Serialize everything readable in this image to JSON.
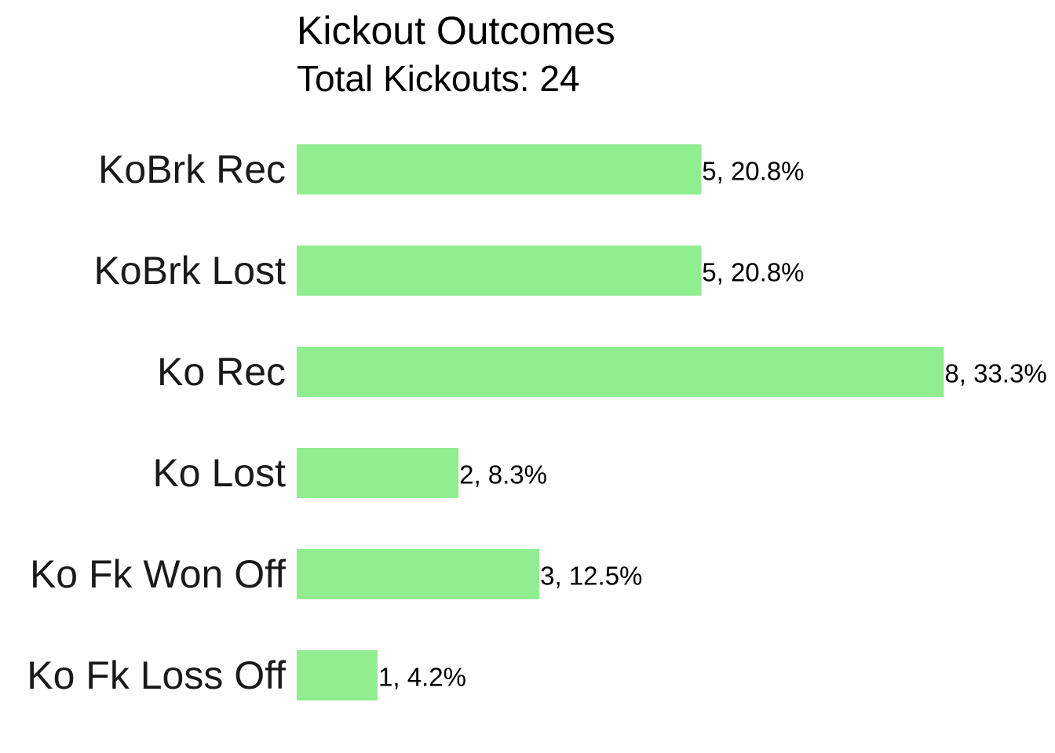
{
  "chart_data": {
    "type": "bar",
    "orientation": "horizontal",
    "title": "Kickout Outcomes",
    "subtitle": "Total Kickouts: 24",
    "xlabel": "",
    "ylabel": "",
    "grid": false,
    "legend": "none",
    "bar_color": "#90EE90",
    "xlim": [
      0,
      8.85
    ],
    "categories": [
      "KoBrk Rec",
      "KoBrk Lost",
      "Ko Rec",
      "Ko Lost",
      "Ko Fk Won Off",
      "Ko Fk Loss Off"
    ],
    "values": [
      5,
      5,
      8,
      2,
      3,
      1
    ],
    "data_labels": [
      "5, 20.8%",
      "5, 20.8%",
      "8, 33.3%",
      "2, 8.3%",
      "3, 12.5%",
      "1, 4.2%"
    ]
  }
}
